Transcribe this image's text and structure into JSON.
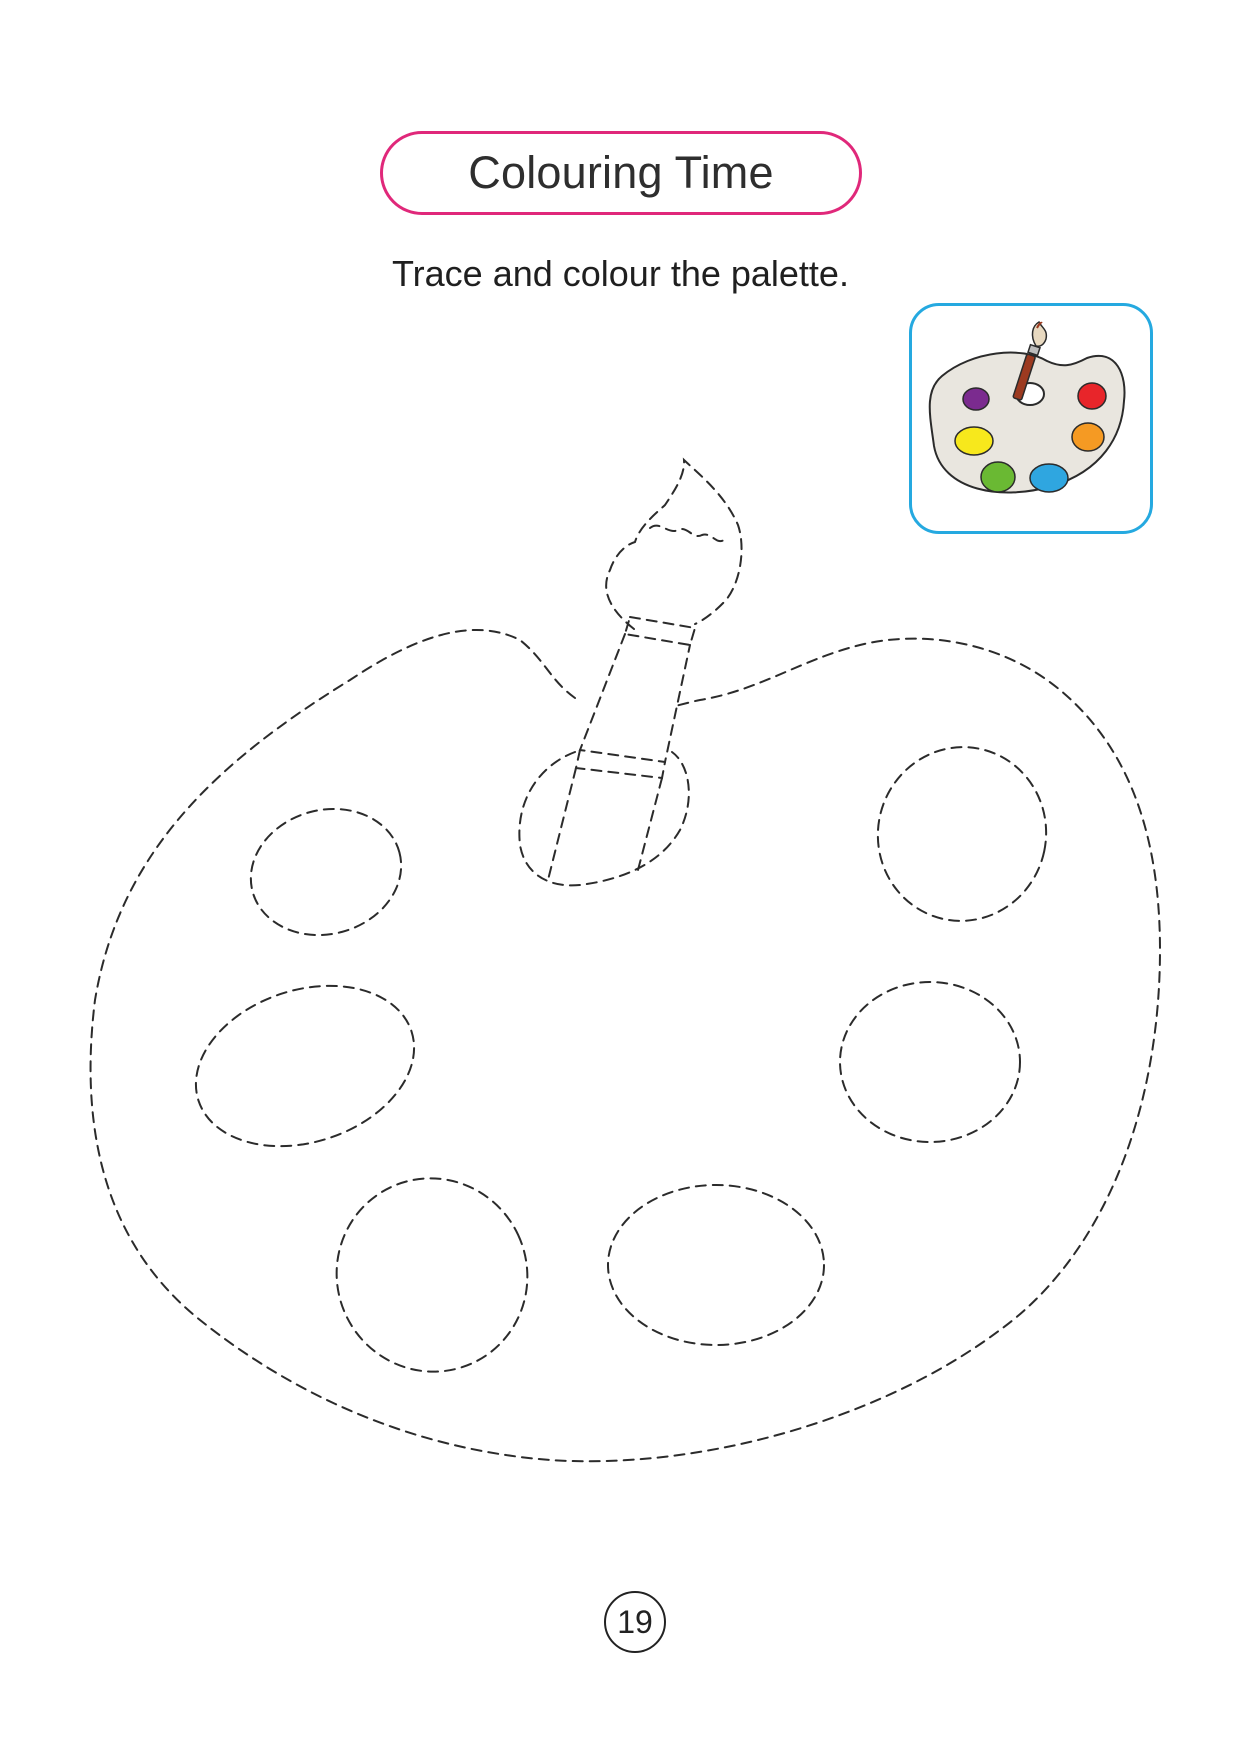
{
  "header": {
    "title": "Colouring Time"
  },
  "instruction": "Trace and colour the palette.",
  "example": {
    "icon": "paint-palette-icon",
    "palette_color": "#e9e6df",
    "paint_colors": [
      "#7b2b8f",
      "#e8252a",
      "#f7e81c",
      "#f59a23",
      "#6ab933",
      "#2fa6e0"
    ],
    "brush_handle_color": "#9c3a20",
    "brush_tip_color": "#e8d9c0"
  },
  "accent_colors": {
    "title_border": "#e0287a",
    "example_border": "#25a9e0"
  },
  "page_number": "19"
}
